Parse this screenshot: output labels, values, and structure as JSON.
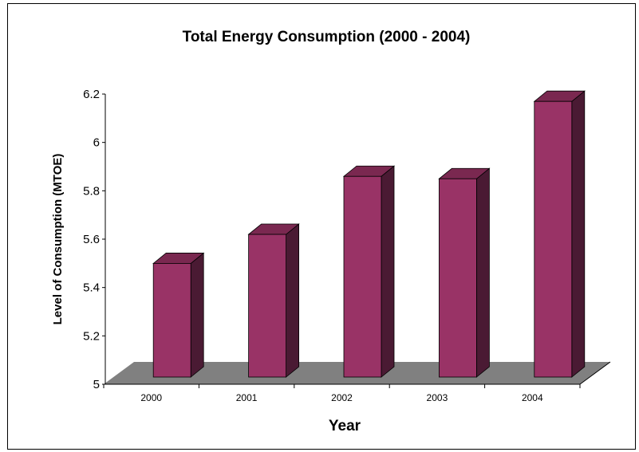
{
  "chart_data": {
    "type": "bar",
    "title": "Total Energy Consumption (2000 - 2004)",
    "xlabel": "Year",
    "ylabel": "Level of Consumption (MTOE)",
    "categories": [
      "2000",
      "2001",
      "2002",
      "2003",
      "2004"
    ],
    "values": [
      5.47,
      5.59,
      5.83,
      5.82,
      6.14
    ],
    "ylim": [
      5,
      6.2
    ],
    "yticks": [
      "5",
      "5.2",
      "5.4",
      "5.6",
      "5.8",
      "6",
      "6.2"
    ],
    "style": "3d-bar",
    "grid": false,
    "legend": "none",
    "colors": {
      "bar_front": "#993366",
      "bar_side": "#4a1a33",
      "bar_top": "#7a2850",
      "floor": "#808080",
      "axis": "#000000"
    }
  }
}
